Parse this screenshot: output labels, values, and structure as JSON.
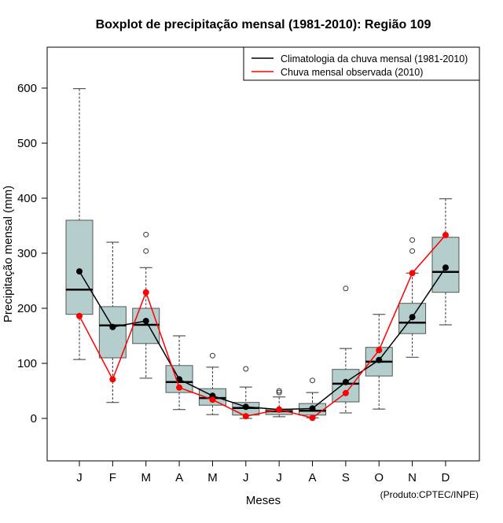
{
  "chart_data": {
    "type": "boxplot",
    "title": "Boxplot de precipitação mensal (1981-2010): Região 109",
    "xlabel": "Meses",
    "ylabel": "Precipitação mensal (mm)",
    "ylim": [
      -77,
      674
    ],
    "yticks": [
      0,
      100,
      200,
      300,
      400,
      500,
      600
    ],
    "categories": [
      "J",
      "F",
      "M",
      "A",
      "M",
      "J",
      "J",
      "A",
      "S",
      "O",
      "N",
      "D"
    ],
    "boxes": [
      {
        "lo": 107,
        "q1": 189,
        "med": 234,
        "q3": 360,
        "hi": 599,
        "out": []
      },
      {
        "lo": 29,
        "q1": 110,
        "med": 169,
        "q3": 203,
        "hi": 320,
        "out": []
      },
      {
        "lo": 73,
        "q1": 136,
        "med": 170,
        "q3": 200,
        "hi": 274,
        "out": [
          304,
          334
        ]
      },
      {
        "lo": 16,
        "q1": 47,
        "med": 66,
        "q3": 96,
        "hi": 150,
        "out": []
      },
      {
        "lo": 7,
        "q1": 24,
        "med": 37,
        "q3": 54,
        "hi": 93,
        "out": [
          114
        ]
      },
      {
        "lo": 0,
        "q1": 6,
        "med": 19,
        "q3": 29,
        "hi": 57,
        "out": [
          90
        ]
      },
      {
        "lo": 3,
        "q1": 7,
        "med": 13,
        "q3": 17,
        "hi": 39,
        "out": [
          47,
          50
        ]
      },
      {
        "lo": 1,
        "q1": 6,
        "med": 14,
        "q3": 27,
        "hi": 47,
        "out": [
          69
        ]
      },
      {
        "lo": 10,
        "q1": 30,
        "med": 63,
        "q3": 89,
        "hi": 127,
        "out": [
          236
        ]
      },
      {
        "lo": 17,
        "q1": 77,
        "med": 103,
        "q3": 129,
        "hi": 189,
        "out": []
      },
      {
        "lo": 111,
        "q1": 154,
        "med": 174,
        "q3": 209,
        "hi": 264,
        "out": [
          304,
          324
        ]
      },
      {
        "lo": 170,
        "q1": 229,
        "med": 266,
        "q3": 329,
        "hi": 399,
        "out": []
      }
    ],
    "series": [
      {
        "name": "Climatologia da chuva mensal (1981-2010)",
        "color": "#000000",
        "values": [
          267,
          166,
          177,
          71,
          41,
          21,
          16,
          18,
          66,
          106,
          184,
          274
        ]
      },
      {
        "name": "Chuva mensal observada (2010)",
        "color": "#ff0000",
        "values": [
          186,
          71,
          229,
          56,
          34,
          4,
          16,
          1,
          46,
          124,
          264,
          333
        ]
      }
    ],
    "box_color": "#b4cdcd",
    "legend_position": "top-right",
    "footer": "(Produto:CPTEC/INPE)"
  }
}
